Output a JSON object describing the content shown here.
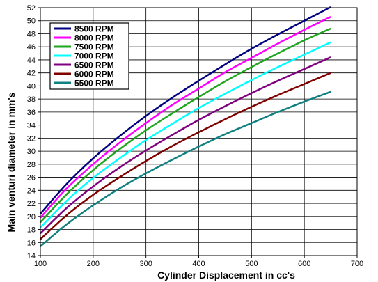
{
  "chart_data": {
    "type": "line",
    "title": "",
    "xlabel": "Cylinder Displacement in cc's",
    "ylabel": "Main venturi diameter in mm's",
    "xlim": [
      100,
      700
    ],
    "ylim": [
      14,
      52
    ],
    "xticks": [
      100,
      200,
      300,
      400,
      500,
      600,
      700
    ],
    "yticks": [
      14,
      16,
      18,
      20,
      22,
      24,
      26,
      28,
      30,
      32,
      34,
      36,
      38,
      40,
      42,
      44,
      46,
      48,
      50,
      52
    ],
    "grid": true,
    "legend_position": "top-left",
    "x": [
      100,
      150,
      200,
      250,
      300,
      350,
      400,
      450,
      500,
      550,
      600,
      650
    ],
    "series": [
      {
        "name": "8500 RPM",
        "color": "#000080",
        "values": [
          20.4,
          25.0,
          28.9,
          32.3,
          35.4,
          38.2,
          40.8,
          43.3,
          45.7,
          47.9,
          50.0,
          52.1
        ]
      },
      {
        "name": "8000 RPM",
        "color": "#ff00ff",
        "values": [
          19.8,
          24.3,
          28.0,
          31.3,
          34.3,
          37.1,
          39.6,
          42.1,
          44.3,
          46.5,
          48.6,
          50.6
        ]
      },
      {
        "name": "7500 RPM",
        "color": "#1fa51f",
        "values": [
          19.1,
          23.4,
          27.1,
          30.3,
          33.2,
          35.8,
          38.3,
          40.7,
          42.9,
          45.0,
          47.0,
          48.8
        ]
      },
      {
        "name": "7000 RPM",
        "color": "#00ffff",
        "values": [
          18.3,
          22.4,
          25.9,
          28.9,
          31.7,
          34.2,
          36.6,
          38.8,
          40.9,
          42.9,
          44.8,
          46.7
        ]
      },
      {
        "name": "6500 RPM",
        "color": "#800080",
        "values": [
          17.4,
          21.3,
          24.6,
          27.5,
          30.1,
          32.5,
          34.8,
          36.9,
          38.9,
          40.8,
          42.6,
          44.4
        ]
      },
      {
        "name": "6000 RPM",
        "color": "#800000",
        "values": [
          16.5,
          20.2,
          23.3,
          26.0,
          28.5,
          30.8,
          32.9,
          34.9,
          36.8,
          38.6,
          40.3,
          42.0
        ]
      },
      {
        "name": "5500 RPM",
        "color": "#108080",
        "values": [
          15.4,
          18.8,
          21.7,
          24.3,
          26.6,
          28.7,
          30.7,
          32.6,
          34.3,
          36.0,
          37.6,
          39.1
        ]
      }
    ]
  }
}
